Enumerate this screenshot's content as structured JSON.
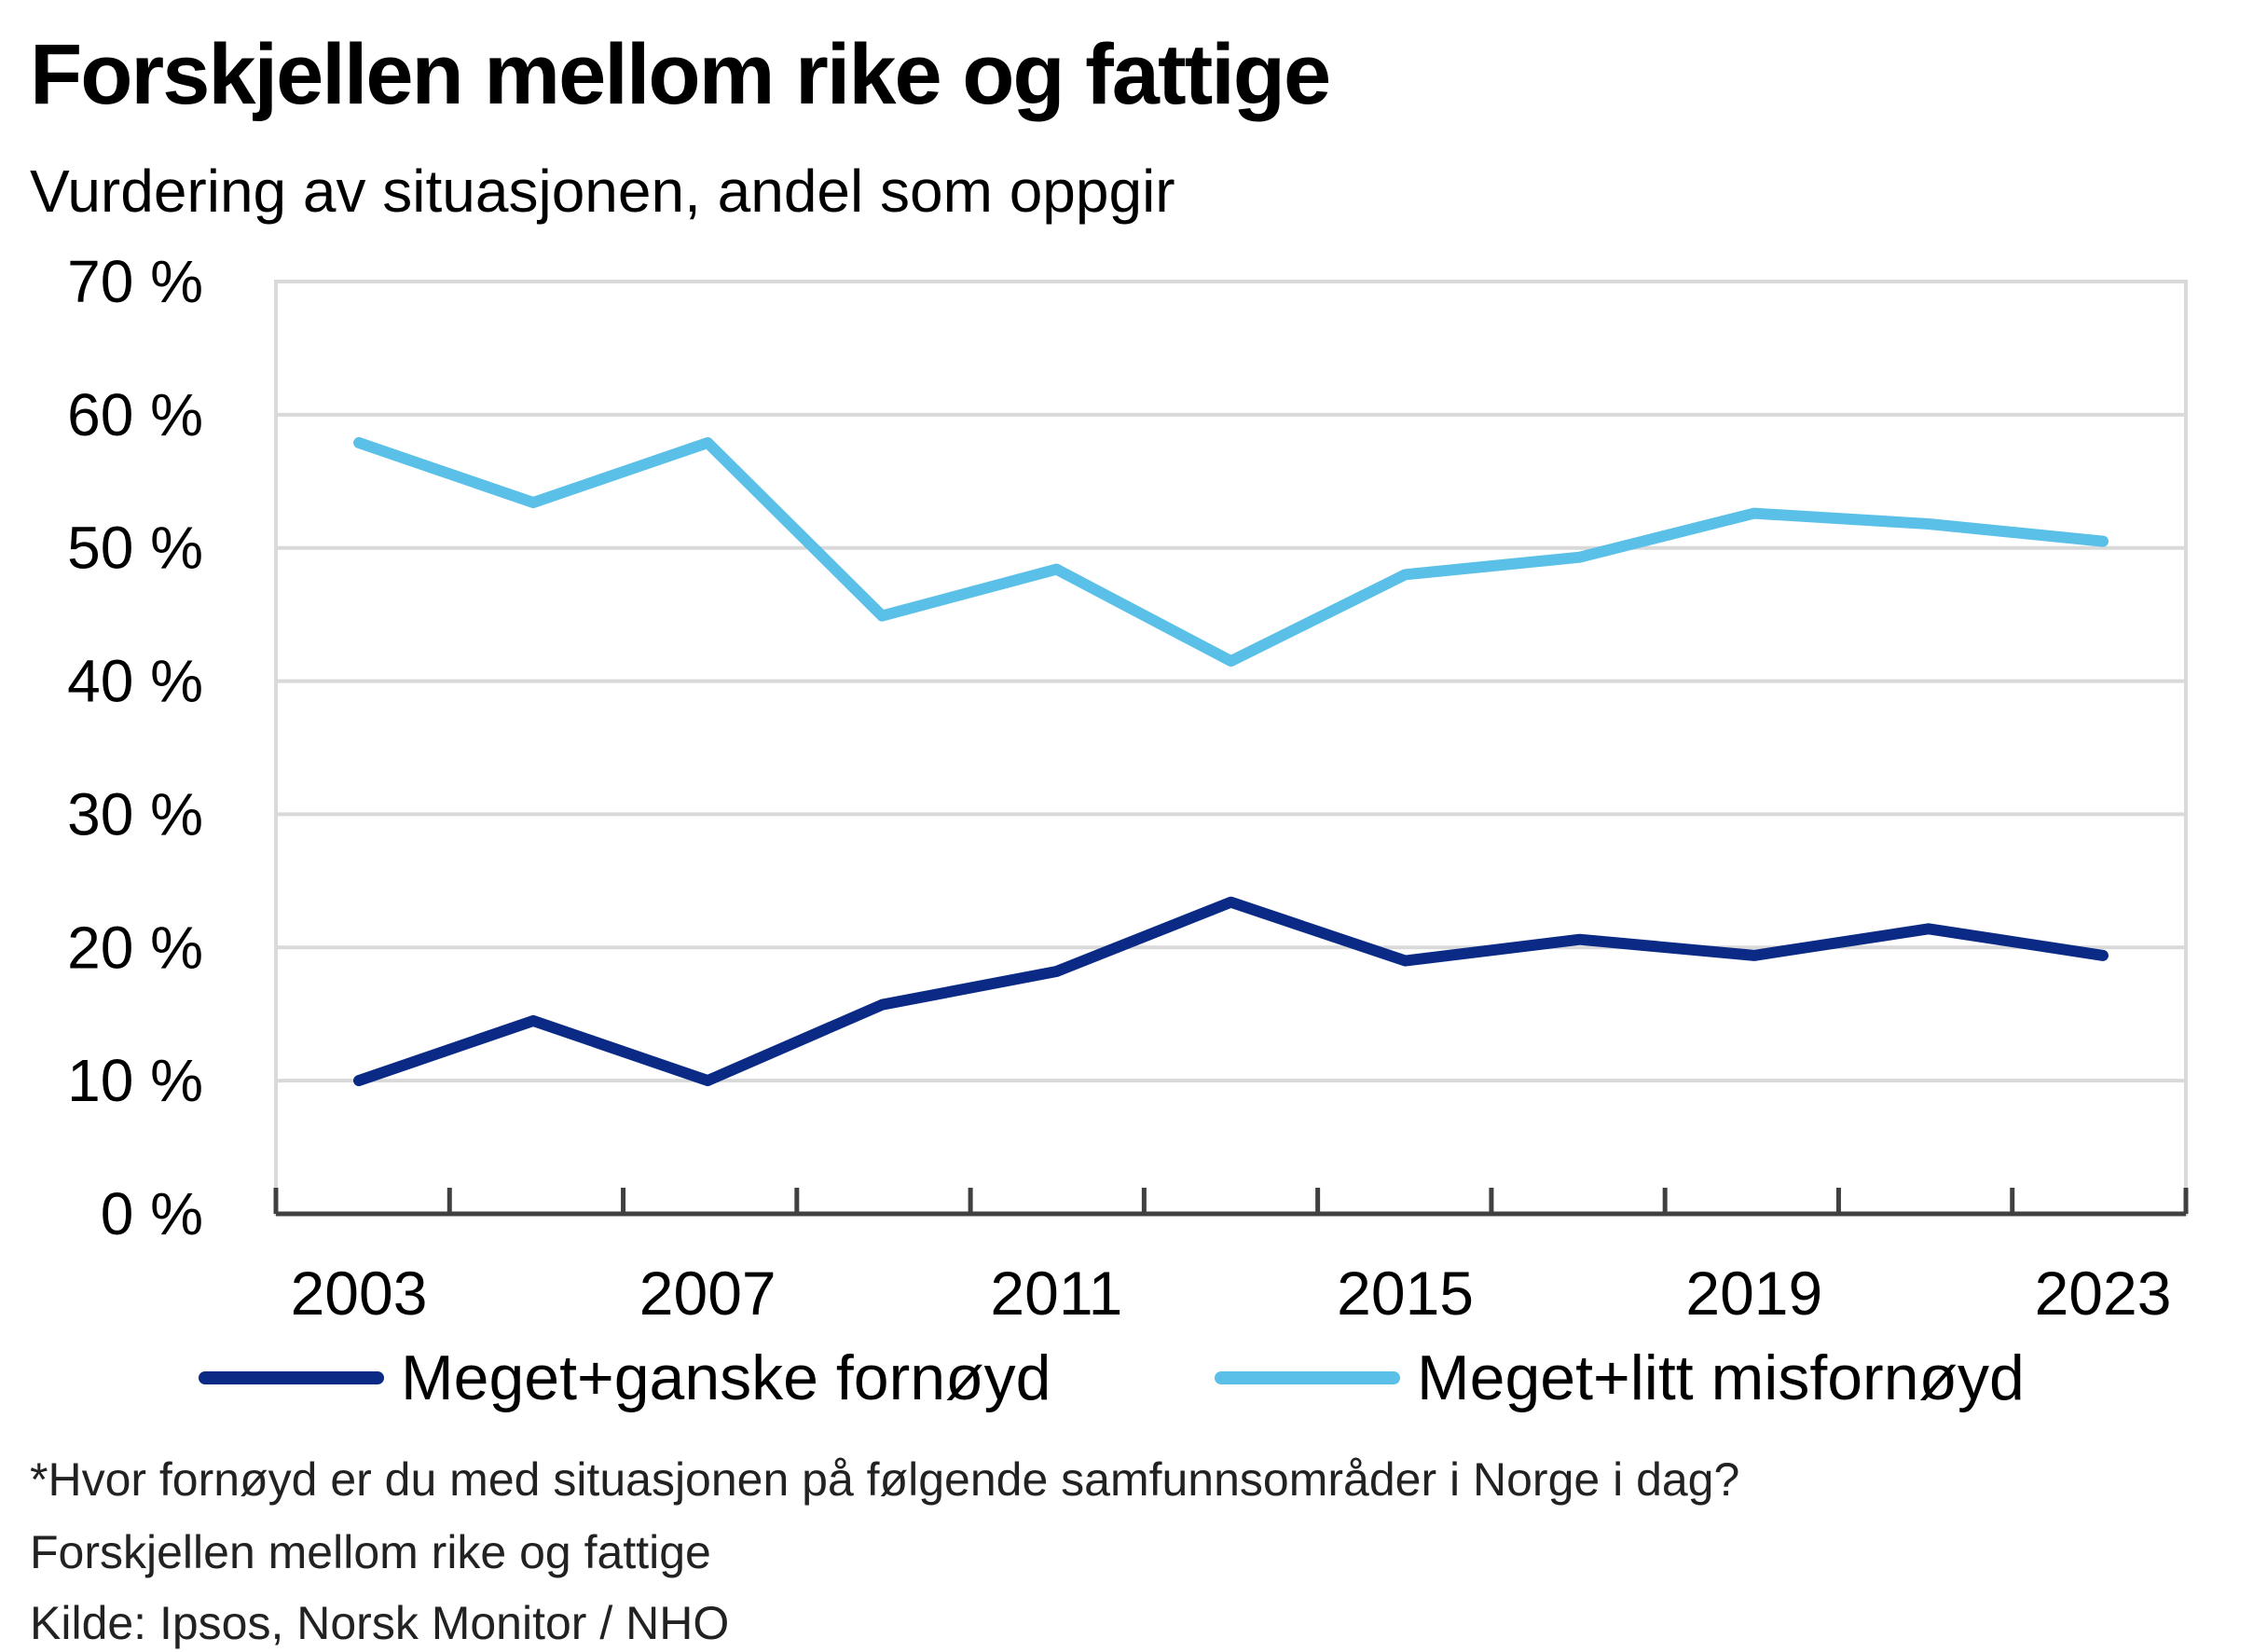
{
  "title": "Forskjellen mellom rike og fattige",
  "subtitle": "Vurdering av situasjonen, andel som oppgir",
  "footnotes": {
    "question": "*Hvor fornøyd er du med situasjonen på følgende samfunnsområder i Norge i dag?",
    "topic": "Forskjellen  mellom rike  og fattige",
    "source": "Kilde:  Ipsos, Norsk  Monitor  / NHO"
  },
  "chart_data": {
    "type": "line",
    "title": "Forskjellen mellom rike og fattige",
    "subtitle": "Vurdering av situasjonen, andel som oppgir",
    "xlabel": "",
    "ylabel": "",
    "x": [
      2003,
      2005,
      2007,
      2009,
      2011,
      2013,
      2015,
      2017,
      2019,
      2021,
      2023
    ],
    "x_tick_labels": [
      "2003",
      "2007",
      "2011",
      "2015",
      "2019",
      "2023"
    ],
    "y_tick_labels": [
      "0 %",
      "10 %",
      "20 %",
      "30 %",
      "40 %",
      "50 %",
      "60 %",
      "70 %"
    ],
    "ylim": [
      0,
      70
    ],
    "grid": true,
    "legend_position": "bottom",
    "series": [
      {
        "name": "Meget+ganske fornøyd",
        "color": "#0a2a86",
        "values": [
          10,
          14.5,
          10,
          15.7,
          18.2,
          23.4,
          19,
          20.6,
          19.4,
          21.4,
          19.4
        ]
      },
      {
        "name": "Meget+litt misfornøyd",
        "color": "#5bc0e8",
        "values": [
          57.9,
          53.4,
          57.9,
          44.9,
          48.4,
          41.5,
          48,
          49.3,
          52.6,
          51.8,
          50.5
        ]
      }
    ]
  }
}
